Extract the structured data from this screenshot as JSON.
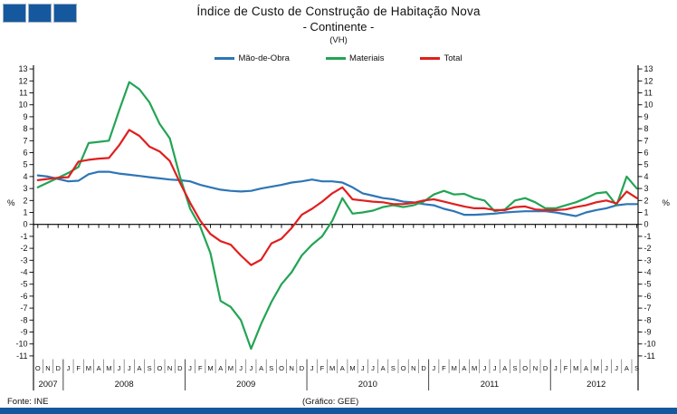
{
  "logo": {
    "count": 3,
    "color": "#15589E",
    "name": "three-blue-squares"
  },
  "footer": {
    "source": "Fonte:  INE",
    "credit": "(Gráfico:  GEE)",
    "bar_color": "#15589E"
  },
  "chart_data": {
    "type": "line",
    "title": "Índice de Custo de Construção de Habitação Nova",
    "subtitle": "- Continente -",
    "note": "(VH)",
    "ylabel": "%",
    "ylim": [
      -11,
      13
    ],
    "y_step": 1,
    "grid": false,
    "legend_position": "top",
    "x_months": [
      "O",
      "N",
      "D",
      "J",
      "F",
      "M",
      "A",
      "M",
      "J",
      "J",
      "A",
      "S",
      "O",
      "N",
      "D",
      "J",
      "F",
      "M",
      "A",
      "M",
      "J",
      "J",
      "A",
      "S",
      "O",
      "N",
      "D",
      "J",
      "F",
      "M",
      "A",
      "M",
      "J",
      "J",
      "A",
      "S",
      "O",
      "N",
      "D",
      "J",
      "F",
      "M",
      "A",
      "M",
      "J",
      "J",
      "A",
      "S",
      "O",
      "N",
      "D",
      "J",
      "F",
      "M",
      "A",
      "M",
      "J",
      "J",
      "A",
      "S"
    ],
    "years": [
      {
        "label": "2007",
        "months": [
          0,
          2
        ]
      },
      {
        "label": "2008",
        "months": [
          3,
          14
        ]
      },
      {
        "label": "2009",
        "months": [
          15,
          26
        ]
      },
      {
        "label": "2010",
        "months": [
          27,
          38
        ]
      },
      {
        "label": "2011",
        "months": [
          39,
          50
        ]
      },
      {
        "label": "2012",
        "months": [
          51,
          59
        ]
      }
    ],
    "series": [
      {
        "name": "Mão-de-Obra",
        "color": "#2E75B6",
        "values": [
          4.1,
          4.0,
          3.8,
          3.6,
          3.65,
          4.2,
          4.4,
          4.4,
          4.25,
          4.15,
          4.05,
          3.95,
          3.85,
          3.75,
          3.7,
          3.6,
          3.3,
          3.1,
          2.9,
          2.8,
          2.75,
          2.8,
          3.0,
          3.15,
          3.3,
          3.5,
          3.6,
          3.75,
          3.6,
          3.6,
          3.5,
          3.1,
          2.6,
          2.4,
          2.2,
          2.1,
          1.9,
          1.85,
          1.7,
          1.6,
          1.3,
          1.1,
          0.8,
          0.8,
          0.85,
          0.9,
          1.0,
          1.05,
          1.1,
          1.1,
          1.1,
          1.0,
          0.85,
          0.7,
          1.0,
          1.2,
          1.35,
          1.6,
          1.7,
          1.7
        ]
      },
      {
        "name": "Materiais",
        "color": "#23A455",
        "values": [
          3.1,
          3.5,
          3.9,
          4.3,
          4.8,
          6.8,
          6.9,
          7.0,
          9.5,
          11.9,
          11.3,
          10.2,
          8.4,
          7.2,
          4.0,
          1.3,
          -0.2,
          -2.4,
          -6.4,
          -6.9,
          -8.0,
          -10.4,
          -8.3,
          -6.5,
          -5.0,
          -4.0,
          -2.6,
          -1.7,
          -1.0,
          0.3,
          2.2,
          0.9,
          1.0,
          1.15,
          1.45,
          1.6,
          1.45,
          1.6,
          1.9,
          2.5,
          2.8,
          2.5,
          2.55,
          2.2,
          2.0,
          1.1,
          1.25,
          2.0,
          2.2,
          1.85,
          1.35,
          1.35,
          1.6,
          1.85,
          2.2,
          2.6,
          2.7,
          1.6,
          4.0,
          3.0
        ]
      },
      {
        "name": "Total",
        "color": "#E01F1F",
        "values": [
          3.7,
          3.8,
          3.9,
          3.95,
          5.25,
          5.4,
          5.5,
          5.55,
          6.6,
          7.9,
          7.4,
          6.5,
          6.1,
          5.3,
          3.5,
          1.8,
          0.3,
          -0.8,
          -1.4,
          -1.7,
          -2.6,
          -3.4,
          -2.95,
          -1.6,
          -1.2,
          -0.3,
          0.8,
          1.3,
          1.9,
          2.6,
          3.1,
          2.1,
          2.0,
          1.9,
          1.85,
          1.7,
          1.7,
          1.8,
          2.0,
          2.1,
          1.9,
          1.7,
          1.5,
          1.35,
          1.35,
          1.2,
          1.2,
          1.45,
          1.5,
          1.25,
          1.2,
          1.2,
          1.25,
          1.45,
          1.6,
          1.85,
          2.0,
          1.75,
          2.75,
          2.2
        ]
      }
    ]
  }
}
